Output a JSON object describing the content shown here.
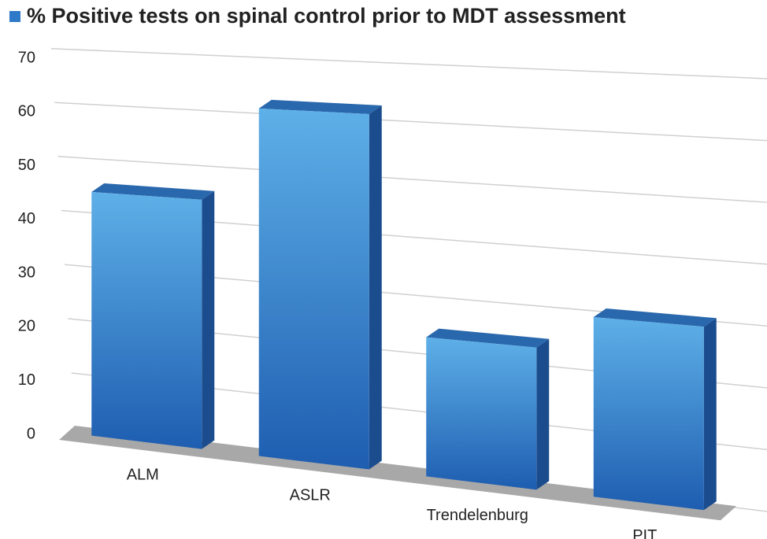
{
  "chart_data": {
    "type": "bar3d",
    "categories": [
      "ALM",
      "ASLR",
      "Trendelenburg",
      "PIT"
    ],
    "series": [
      {
        "name": "% Positive tests on spinal control prior to MDT assessment",
        "color": "#2f79c9",
        "values": [
          45,
          62,
          24,
          30
        ]
      }
    ],
    "ylim": [
      0,
      70
    ],
    "yticks": [
      0,
      10,
      20,
      30,
      40,
      50,
      60,
      70
    ],
    "grid": true,
    "legend": "top-left"
  }
}
